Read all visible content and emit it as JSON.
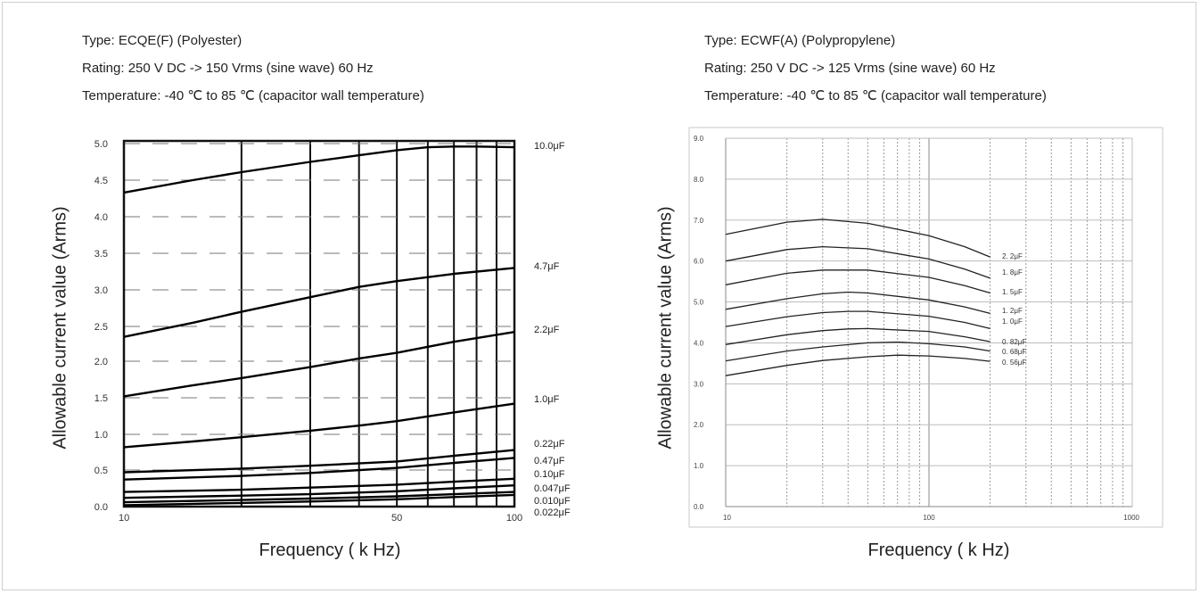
{
  "left": {
    "specs": [
      "Type: ECQE(F) (Polyester)",
      "Rating: 250 V DC -> 150 Vrms (sine wave) 60 Hz",
      "Temperature: -40 ℃ to 85 ℃ (capacitor wall temperature)"
    ]
  },
  "right": {
    "specs": [
      "Type: ECWF(A) (Polypropylene)",
      "Rating: 250 V DC -> 125 Vrms (sine wave) 60 Hz",
      "Temperature: -40 ℃ to 85 ℃ (capacitor wall temperature)"
    ]
  },
  "chart_data": [
    {
      "type": "line",
      "xlabel": "Frequency ( k Hz)",
      "ylabel": "Allowable current value (Arms)",
      "x_scale": "log",
      "xlim": [
        10,
        100
      ],
      "x_ticks": [
        "10",
        "50",
        "100"
      ],
      "y_ticks": [
        "0.0",
        "0.5",
        "1.0",
        "1.5",
        "2.0",
        "2.5",
        "3.0",
        "3.5",
        "4.0",
        "4.5",
        "5.0"
      ],
      "grid": true,
      "series": [
        {
          "name": "10.0μF",
          "x": [
            10,
            15,
            20,
            30,
            40,
            50,
            60,
            70,
            80,
            100
          ],
          "values": [
            4.33,
            4.5,
            4.61,
            4.75,
            4.84,
            4.91,
            4.95,
            4.96,
            4.96,
            4.95
          ]
        },
        {
          "name": "4.7μF",
          "x": [
            10,
            15,
            20,
            30,
            40,
            50,
            70,
            100
          ],
          "values": [
            2.35,
            2.55,
            2.7,
            2.9,
            3.04,
            3.12,
            3.22,
            3.3
          ]
        },
        {
          "name": "2.2μF",
          "x": [
            10,
            15,
            20,
            30,
            40,
            50,
            70,
            100
          ],
          "values": [
            1.52,
            1.67,
            1.77,
            1.92,
            2.04,
            2.12,
            2.28,
            2.42
          ]
        },
        {
          "name": "1.0μF",
          "x": [
            10,
            15,
            20,
            30,
            40,
            50,
            70,
            100
          ],
          "values": [
            0.82,
            0.9,
            0.96,
            1.05,
            1.12,
            1.18,
            1.3,
            1.42
          ]
        },
        {
          "name": "0.22μF",
          "x": [
            10,
            20,
            30,
            50,
            70,
            100
          ],
          "values": [
            0.47,
            0.52,
            0.56,
            0.62,
            0.7,
            0.78
          ]
        },
        {
          "name": "0.47μF",
          "x": [
            10,
            20,
            30,
            50,
            70,
            100
          ],
          "values": [
            0.37,
            0.42,
            0.46,
            0.53,
            0.6,
            0.67
          ]
        },
        {
          "name": "0.10μF",
          "x": [
            10,
            20,
            30,
            50,
            70,
            100
          ],
          "values": [
            0.2,
            0.23,
            0.26,
            0.3,
            0.34,
            0.38
          ]
        },
        {
          "name": "0.047μF",
          "x": [
            10,
            20,
            30,
            50,
            70,
            100
          ],
          "values": [
            0.12,
            0.15,
            0.17,
            0.21,
            0.25,
            0.29
          ]
        },
        {
          "name": "0.010μF",
          "x": [
            10,
            20,
            30,
            50,
            70,
            100
          ],
          "values": [
            0.06,
            0.09,
            0.11,
            0.14,
            0.17,
            0.2
          ]
        },
        {
          "name": "0.022μF",
          "x": [
            10,
            20,
            30,
            50,
            70,
            100
          ],
          "values": [
            0.02,
            0.05,
            0.07,
            0.1,
            0.13,
            0.16
          ]
        }
      ]
    },
    {
      "type": "line",
      "xlabel": "Frequency ( k Hz)",
      "ylabel": "Allowable current value (Arms)",
      "x_scale": "log",
      "xlim": [
        10,
        1000
      ],
      "ylim": [
        0,
        9
      ],
      "x_ticks": [
        "10",
        "100",
        "1000"
      ],
      "y_ticks": [
        "0.0",
        "1.0",
        "2.0",
        "3.0",
        "4.0",
        "5.0",
        "6.0",
        "7.0",
        "8.0",
        "9.0"
      ],
      "grid": true,
      "series": [
        {
          "name": "2. 2μF",
          "x": [
            10,
            20,
            30,
            50,
            100,
            150,
            200
          ],
          "values": [
            6.65,
            6.95,
            7.02,
            6.92,
            6.62,
            6.35,
            6.1
          ]
        },
        {
          "name": "1. 8μF",
          "x": [
            10,
            20,
            30,
            50,
            100,
            150,
            200
          ],
          "values": [
            6.0,
            6.28,
            6.35,
            6.3,
            6.05,
            5.8,
            5.58
          ]
        },
        {
          "name": "1. 5μF",
          "x": [
            10,
            20,
            30,
            50,
            100,
            150,
            200
          ],
          "values": [
            5.42,
            5.7,
            5.78,
            5.78,
            5.6,
            5.4,
            5.22
          ]
        },
        {
          "name": "1. 2μF",
          "x": [
            10,
            20,
            30,
            40,
            50,
            100,
            150,
            200
          ],
          "values": [
            4.82,
            5.08,
            5.2,
            5.24,
            5.22,
            5.05,
            4.88,
            4.72
          ]
        },
        {
          "name": "1. 0μF",
          "x": [
            10,
            20,
            30,
            40,
            50,
            100,
            150,
            200
          ],
          "values": [
            4.4,
            4.64,
            4.74,
            4.77,
            4.77,
            4.65,
            4.5,
            4.35
          ]
        },
        {
          "name": "0. 82μF",
          "x": [
            10,
            20,
            30,
            40,
            50,
            100,
            150,
            200
          ],
          "values": [
            3.96,
            4.2,
            4.3,
            4.34,
            4.35,
            4.28,
            4.15,
            4.03
          ]
        },
        {
          "name": "0. 68μF",
          "x": [
            10,
            20,
            30,
            50,
            70,
            100,
            150,
            200
          ],
          "values": [
            3.56,
            3.8,
            3.9,
            4.0,
            4.02,
            3.98,
            3.9,
            3.8
          ]
        },
        {
          "name": "0. 56μF",
          "x": [
            10,
            20,
            30,
            50,
            70,
            100,
            150,
            200
          ],
          "values": [
            3.2,
            3.45,
            3.57,
            3.66,
            3.7,
            3.68,
            3.62,
            3.55
          ]
        }
      ]
    }
  ]
}
